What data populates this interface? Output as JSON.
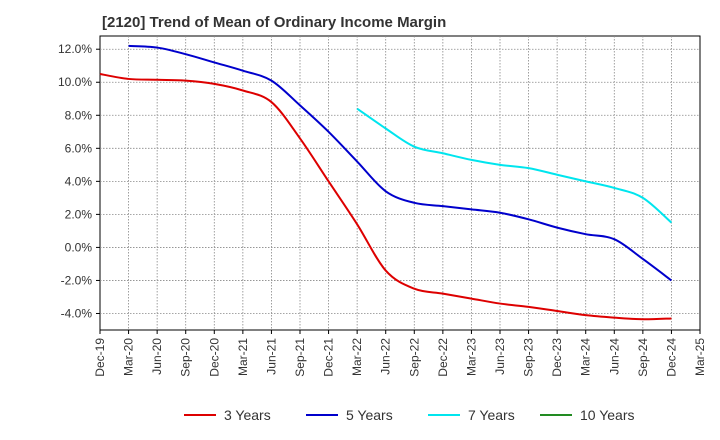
{
  "title": "[2120]  Trend of Mean of Ordinary Income Margin",
  "colors": {
    "3 Years": "#dd0000",
    "5 Years": "#0000cc",
    "7 Years": "#00e5ee",
    "10 Years": "#228b22"
  },
  "chart_data": {
    "type": "line",
    "title": "[2120]  Trend of Mean of Ordinary Income Margin",
    "xlabel": "",
    "ylabel": "",
    "x_ticks": [
      "Dec-19",
      "Mar-20",
      "Jun-20",
      "Sep-20",
      "Dec-20",
      "Mar-21",
      "Jun-21",
      "Sep-21",
      "Dec-21",
      "Mar-22",
      "Jun-22",
      "Sep-22",
      "Dec-22",
      "Mar-23",
      "Jun-23",
      "Sep-23",
      "Dec-23",
      "Mar-24",
      "Jun-24",
      "Sep-24",
      "Dec-24",
      "Mar-25"
    ],
    "y_ticks": [
      "12.0%",
      "10.0%",
      "8.0%",
      "6.0%",
      "4.0%",
      "2.0%",
      "0.0%",
      "-2.0%",
      "-4.0%"
    ],
    "y_tick_values": [
      12,
      10,
      8,
      6,
      4,
      2,
      0,
      -2,
      -4
    ],
    "ylim": [
      -5,
      12.8
    ],
    "grid": true,
    "legend_position": "bottom",
    "series": [
      {
        "name": "3 Years",
        "x": [
          "Dec-19",
          "Mar-20",
          "Jun-20",
          "Sep-20",
          "Dec-20",
          "Mar-21",
          "Jun-21",
          "Sep-21",
          "Dec-21",
          "Mar-22",
          "Jun-22",
          "Sep-22",
          "Dec-22",
          "Mar-23",
          "Jun-23",
          "Sep-23",
          "Dec-23",
          "Mar-24",
          "Jun-24",
          "Sep-24",
          "Dec-24"
        ],
        "values": [
          10.5,
          10.2,
          10.15,
          10.1,
          9.9,
          9.5,
          8.8,
          6.6,
          4.0,
          1.4,
          -1.4,
          -2.5,
          -2.8,
          -3.1,
          -3.4,
          -3.6,
          -3.85,
          -4.1,
          -4.25,
          -4.35,
          -4.3
        ]
      },
      {
        "name": "5 Years",
        "x": [
          "Mar-20",
          "Jun-20",
          "Sep-20",
          "Dec-20",
          "Mar-21",
          "Jun-21",
          "Sep-21",
          "Dec-21",
          "Mar-22",
          "Jun-22",
          "Sep-22",
          "Dec-22",
          "Mar-23",
          "Jun-23",
          "Sep-23",
          "Dec-23",
          "Mar-24",
          "Jun-24",
          "Sep-24",
          "Dec-24"
        ],
        "values": [
          12.2,
          12.1,
          11.7,
          11.2,
          10.7,
          10.1,
          8.6,
          7.0,
          5.2,
          3.4,
          2.7,
          2.5,
          2.3,
          2.1,
          1.7,
          1.2,
          0.8,
          0.5,
          -0.7,
          -2.0
        ]
      },
      {
        "name": "7 Years",
        "x": [
          "Mar-22",
          "Jun-22",
          "Sep-22",
          "Dec-22",
          "Mar-23",
          "Jun-23",
          "Sep-23",
          "Dec-23",
          "Mar-24",
          "Jun-24",
          "Sep-24",
          "Dec-24"
        ],
        "values": [
          8.4,
          7.2,
          6.1,
          5.7,
          5.3,
          5.0,
          4.8,
          4.4,
          4.0,
          3.6,
          3.0,
          1.5
        ]
      },
      {
        "name": "10 Years",
        "x": [],
        "values": []
      }
    ]
  }
}
